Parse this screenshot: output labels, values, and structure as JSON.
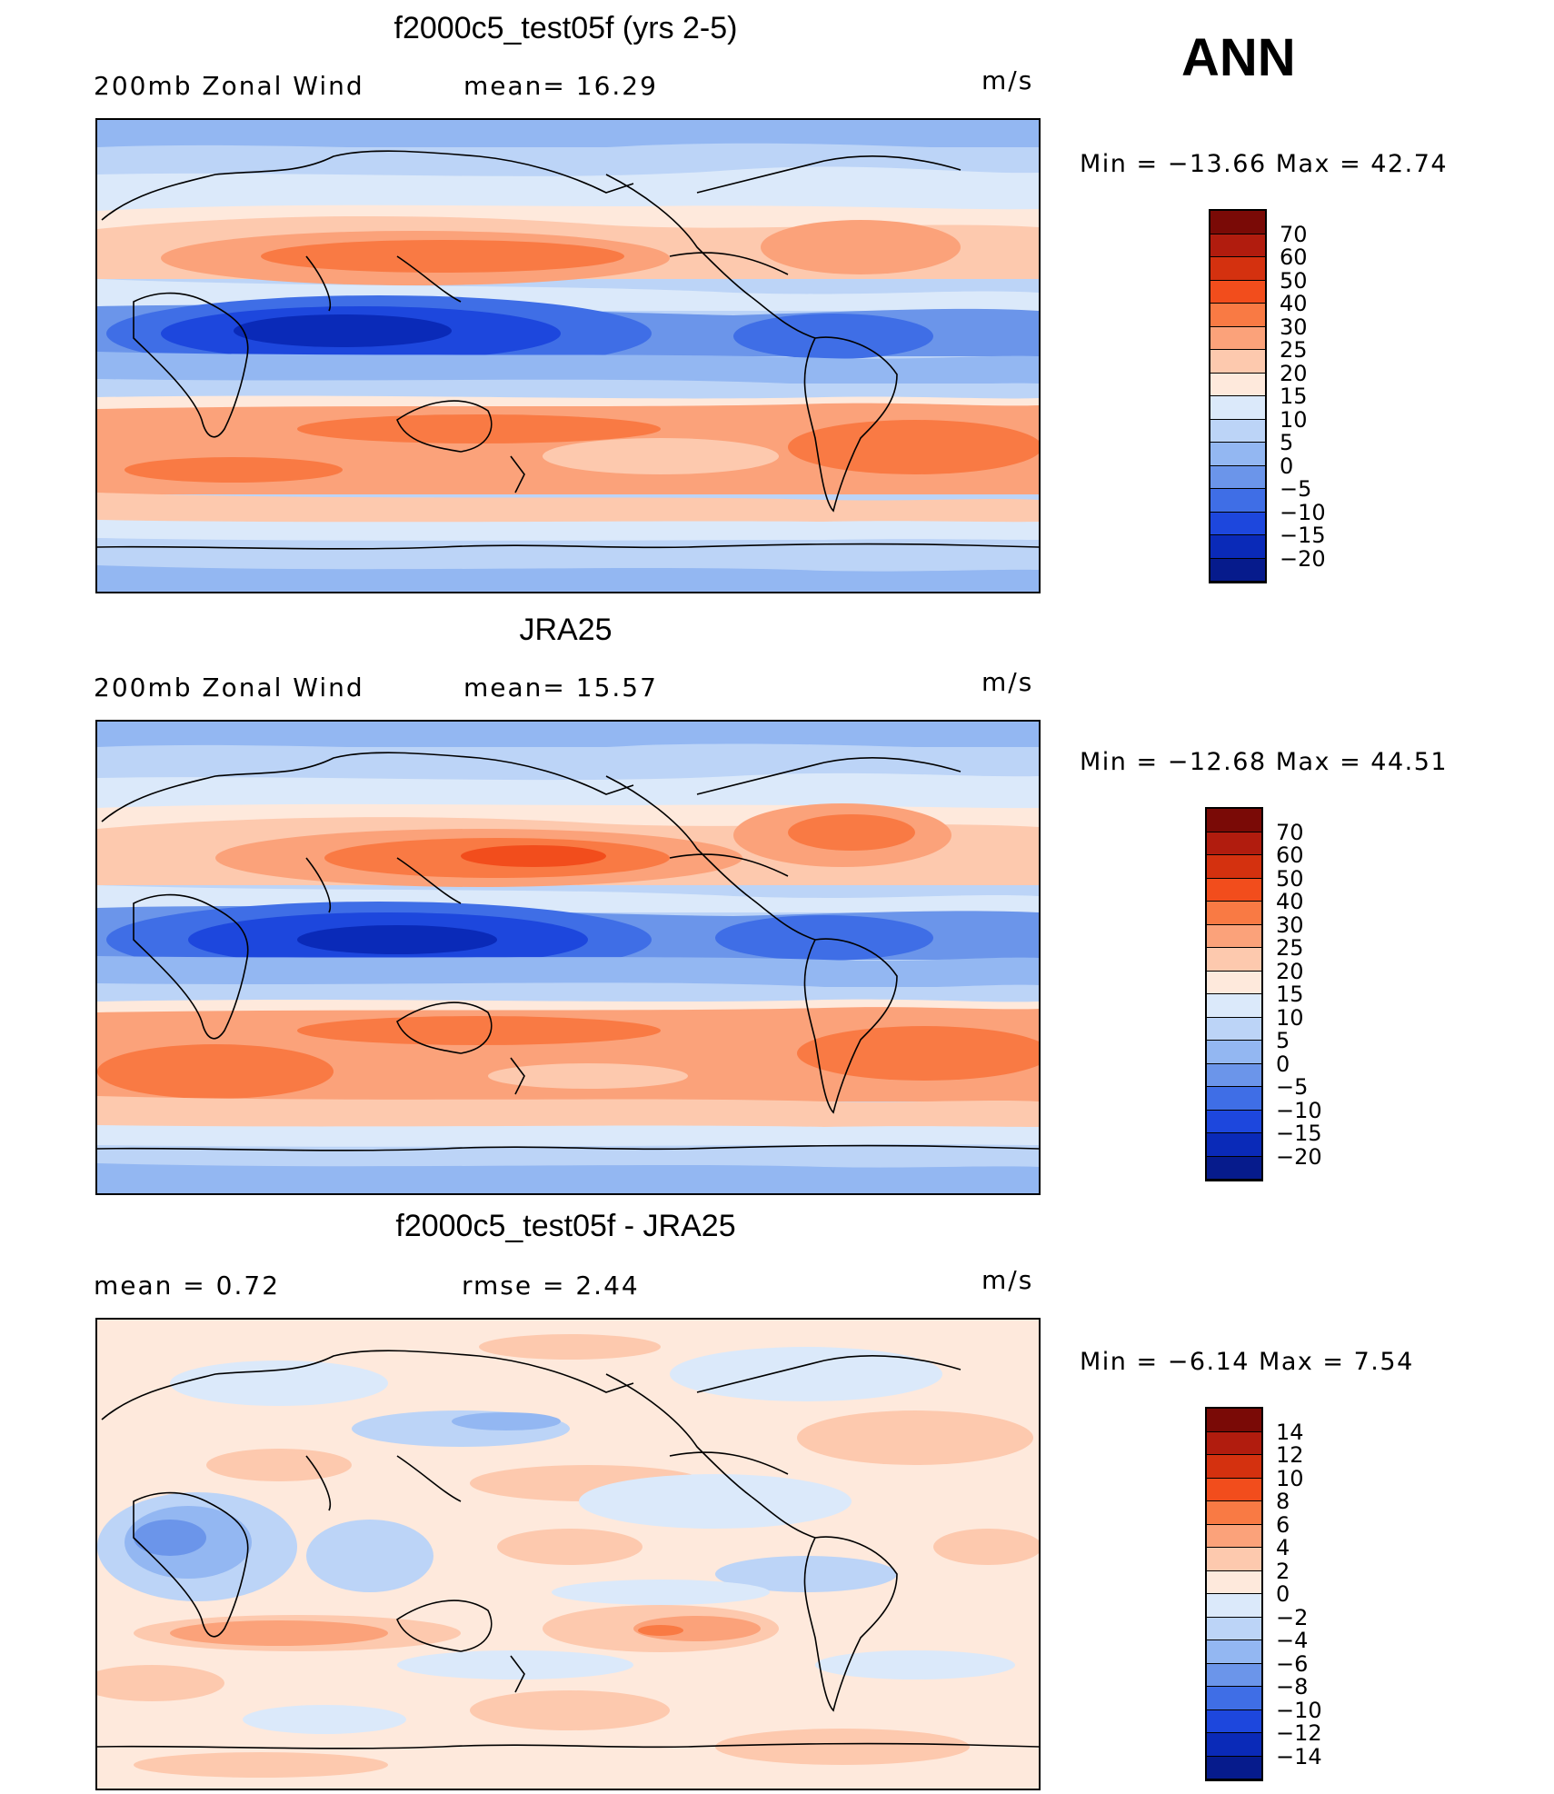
{
  "season_label": "ANN",
  "panels": [
    {
      "title": "f2000c5_test05f (yrs 2-5)",
      "left_text": "200mb  Zonal  Wind",
      "mid_text": "mean=   16.29",
      "units": "m/s",
      "minmax": "Min  =  −13.66  Max  =    42.74",
      "colorbar_labels": [
        "70",
        "60",
        "50",
        "40",
        "30",
        "25",
        "20",
        "15",
        "10",
        "5",
        "0",
        "−5",
        "−10",
        "−15",
        "−20"
      ]
    },
    {
      "title": "JRA25",
      "left_text": "200mb  Zonal  Wind",
      "mid_text": "mean=   15.57",
      "units": "m/s",
      "minmax": "Min  =  −12.68  Max  =    44.51",
      "colorbar_labels": [
        "70",
        "60",
        "50",
        "40",
        "30",
        "25",
        "20",
        "15",
        "10",
        "5",
        "0",
        "−5",
        "−10",
        "−15",
        "−20"
      ]
    },
    {
      "title": "f2000c5_test05f - JRA25",
      "left_text": "mean  =     0.72",
      "mid_text": "rmse  =     2.44",
      "units": "m/s",
      "minmax": "Min  =    −6.14  Max  =      7.54",
      "colorbar_labels": [
        "14",
        "12",
        "10",
        "8",
        "6",
        "4",
        "2",
        "0",
        "−2",
        "−4",
        "−6",
        "−8",
        "−10",
        "−12",
        "−14"
      ]
    }
  ],
  "colors": {
    "colorbar_16": [
      "#7a0a06",
      "#b11c0e",
      "#d4310f",
      "#f24d1c",
      "#f97a44",
      "#fba27a",
      "#fdc9ae",
      "#fee9dc",
      "#dbe9fa",
      "#bcd4f7",
      "#93b7f2",
      "#6b95ea",
      "#3f6ee6",
      "#1d47dd",
      "#0a2ab8",
      "#061b8c"
    ]
  }
}
